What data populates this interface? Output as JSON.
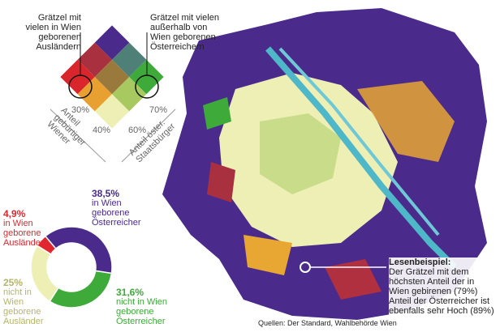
{
  "legend": {
    "left_label": "Grätzel mit vielen in Wien geborenen Ausländern",
    "right_label": "Grätzel mit vielen außerhalb von Wien geborenen Österreichern",
    "left_axis": {
      "ticks": [
        "30%",
        "40%"
      ],
      "title": "Anteil gebürtiger Wiener"
    },
    "right_axis": {
      "ticks": [
        "60%",
        "70%"
      ],
      "title": "Anteil öster. Staatsbürger"
    }
  },
  "chart_data": {
    "type": "donut",
    "categories": [
      "in Wien geborene Österreicher",
      "nicht in Wien geborene Österreicher",
      "nicht in Wien geborene Ausländer",
      "in Wien geborene Ausländer"
    ],
    "values": [
      38.5,
      31.6,
      25,
      4.9
    ],
    "value_labels": [
      "38,5%",
      "31,6%",
      "25%",
      "4,9%"
    ],
    "colors": [
      "#4a2b8c",
      "#3daa3a",
      "#eeefb4",
      "#e0262e"
    ]
  },
  "callout": {
    "title": "Lesenbeispiel:",
    "text": "Der Grätzel mit dem höchsten Anteil der in Wien gebirenen (79%) Anteil der Österreicher ist ebenfalls sehr Hoch (89%)"
  },
  "source": "Quellen: Der Standard, Wahlbehörde Wien"
}
